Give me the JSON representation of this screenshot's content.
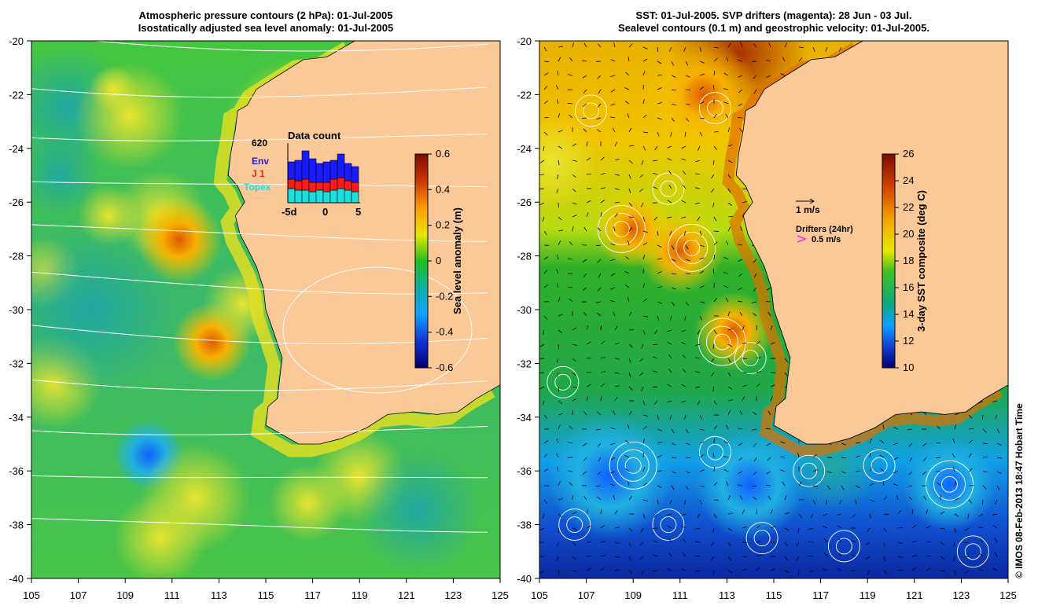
{
  "left_panel": {
    "title_line1": "Atmospheric pressure contours (2 hPa): 01-Jul-2005",
    "title_line2": "Isostatically adjusted sea level anomaly: 01-Jul-2005",
    "colorbar": {
      "label": "Sea level anomaly (m)",
      "ticks": [
        "0.6",
        "0.4",
        "0.2",
        "0",
        "-0.2",
        "-0.4",
        "-0.6"
      ],
      "range": [
        -0.6,
        0.6
      ]
    },
    "data_count": {
      "title": "Data count",
      "max_label": "620",
      "legend": [
        {
          "label": "Env",
          "color": "#1a1aff"
        },
        {
          "label": "J 1",
          "color": "#ff1a1a"
        },
        {
          "label": "Topex",
          "color": "#1ae0e0"
        }
      ],
      "x_ticks": [
        "-5d",
        "0",
        "5"
      ]
    }
  },
  "right_panel": {
    "title_line1": "SST: 01-Jul-2005. SVP drifters (magenta): 28 Jun - 03 Jul.",
    "title_line2": "Sealevel contours (0.1 m) and geostrophic velocity: 01-Jul-2005.",
    "colorbar": {
      "label": "3-day SST composite (deg C)",
      "ticks": [
        "26",
        "24",
        "22",
        "20",
        "18",
        "16",
        "14",
        "12",
        "10"
      ],
      "range": [
        10,
        26
      ]
    },
    "velocity_key": "1 m/s",
    "drifters_title": "Drifters (24hr)",
    "drifters_key": "0.5 m/s"
  },
  "axes": {
    "lon_ticks": [
      "105",
      "107",
      "109",
      "111",
      "113",
      "115",
      "117",
      "119",
      "121",
      "123",
      "125"
    ],
    "lat_ticks": [
      "-20",
      "-22",
      "-24",
      "-26",
      "-28",
      "-30",
      "-32",
      "-34",
      "-36",
      "-38",
      "-40"
    ],
    "lon_range": [
      105,
      125
    ],
    "lat_range": [
      -40,
      -20
    ]
  },
  "credit": "© IMOS 08-Feb-2013 18:47 Hobart Time",
  "colors": {
    "land": "#fbc898",
    "background": "#ffffff"
  }
}
